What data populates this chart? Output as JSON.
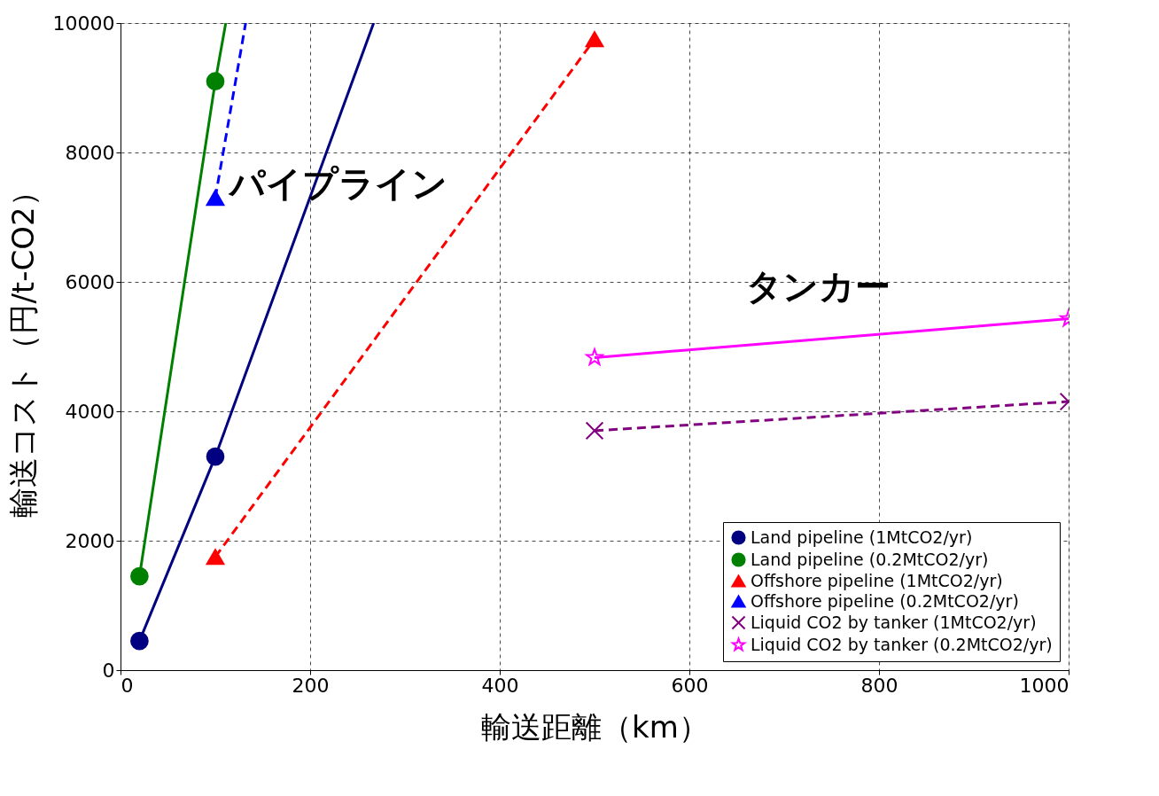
{
  "chart_data": {
    "type": "line",
    "xlabel": "輸送距離（km）",
    "ylabel": "輸送コスト（円/t-CO2）",
    "xlim": [
      0,
      1000
    ],
    "xticks": [
      0,
      200,
      400,
      600,
      800,
      {
        "value": 1000,
        "label": "1000"
      }
    ],
    "ylim": [
      0,
      10000
    ],
    "yticks": [
      0,
      {
        "value": 2000,
        "label": "2000"
      },
      {
        "value": 4000,
        "label": "4000"
      },
      {
        "value": 6000,
        "label": "6000"
      },
      {
        "value": 8000,
        "label": "8000"
      },
      {
        "value": 10000,
        "label": "10000"
      }
    ],
    "grid": true,
    "legend": "bottom right",
    "series": [
      {
        "name": "Land pipeline (1MtCO2/yr)",
        "color": "#000080",
        "marker": "circle",
        "line_style": "solid",
        "x": [
          20,
          100,
          267
        ],
        "values": [
          450,
          3300,
          10000
        ]
      },
      {
        "name": "Land pipeline (0.2MtCO2/yr)",
        "color": "#008000",
        "marker": "circle",
        "line_style": "solid",
        "x": [
          20,
          100,
          111
        ],
        "values": [
          1450,
          9100,
          10000
        ]
      },
      {
        "name": "Offshore pipeline (1MtCO2/yr)",
        "color": "#ff0000",
        "marker": "triangle",
        "line_style": "dashed",
        "x": [
          100,
          500
        ],
        "values": [
          1750,
          9750
        ]
      },
      {
        "name": "Offshore pipeline (0.2MtCO2/yr)",
        "color": "#0000ff",
        "marker": "triangle",
        "line_style": "dashed",
        "x": [
          100,
          132
        ],
        "values": [
          7300,
          10000
        ]
      },
      {
        "name": "Liquid CO2 by tanker (1MtCO2/yr)",
        "color": "#800080",
        "marker": "cross",
        "line_style": "dashed",
        "x": [
          500,
          1000
        ],
        "values": [
          3700,
          4150
        ]
      },
      {
        "name": "Liquid CO2 by tanker (0.2MtCO2/yr)",
        "color": "#ff00ff",
        "marker": "star",
        "line_style": "solid",
        "x": [
          500,
          1000
        ],
        "values": [
          4830,
          5430
        ]
      }
    ],
    "annotations": [
      "パイプライン",
      "タンカー"
    ]
  }
}
